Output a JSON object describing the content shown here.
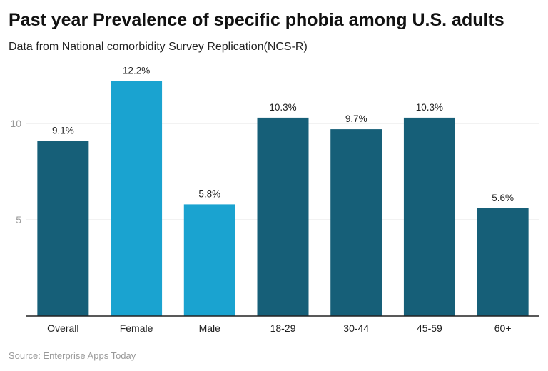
{
  "chart_data": {
    "type": "bar",
    "title": "Past year Prevalence of specific phobia among U.S. adults",
    "subtitle": "Data from National comorbidity Survey Replication(NCS-R)",
    "source": "Source: Enterprise Apps Today",
    "categories": [
      "Overall",
      "Female",
      "Male",
      "18-29",
      "30-44",
      "45-59",
      "60+"
    ],
    "values": [
      9.1,
      12.2,
      5.8,
      10.3,
      9.7,
      10.3,
      5.6
    ],
    "data_labels": [
      "9.1%",
      "12.2%",
      "5.8%",
      "10.3%",
      "9.7%",
      "10.3%",
      "5.6%"
    ],
    "bar_colors": [
      "#165f78",
      "#1aa3d0",
      "#1aa3d0",
      "#165f78",
      "#165f78",
      "#165f78",
      "#165f78"
    ],
    "yticks": [
      5,
      10
    ],
    "ylim": [
      0,
      13
    ],
    "grid": true,
    "xlabel": "",
    "ylabel": ""
  }
}
